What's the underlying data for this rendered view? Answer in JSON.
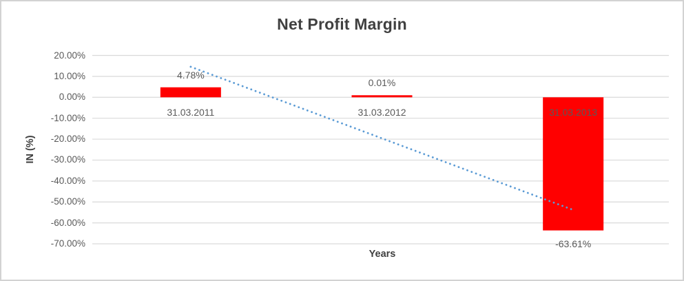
{
  "chart": {
    "title": "Net Profit Margin",
    "x_axis_label": "Years",
    "y_axis_label": "IN (%)"
  },
  "chart_data": {
    "type": "bar",
    "title": "Net Profit Margin",
    "xlabel": "Years",
    "ylabel": "IN (%)",
    "categories": [
      "31.03.2011",
      "31.03.2012",
      "31.03.2013"
    ],
    "values": [
      4.78,
      0.01,
      -63.61
    ],
    "data_labels": [
      "4.78%",
      "0.01%",
      "-63.61%"
    ],
    "y_ticks": [
      {
        "value": 20,
        "label": "20.00%"
      },
      {
        "value": 10,
        "label": "10.00%"
      },
      {
        "value": 0,
        "label": "0.00%"
      },
      {
        "value": -10,
        "label": "-10.00%"
      },
      {
        "value": -20,
        "label": "-20.00%"
      },
      {
        "value": -30,
        "label": "-30.00%"
      },
      {
        "value": -40,
        "label": "-40.00%"
      },
      {
        "value": -50,
        "label": "-50.00%"
      },
      {
        "value": -60,
        "label": "-60.00%"
      },
      {
        "value": -70,
        "label": "-70.00%"
      }
    ],
    "ylim": [
      -70,
      20
    ],
    "grid": true,
    "legend": false,
    "trendline": {
      "type": "linear",
      "style": "dotted",
      "fitted_endpoints_pct": [
        14.59,
        -53.8
      ]
    },
    "colors": {
      "bar": "#ff0000",
      "trendline": "#5b9bd5",
      "gridline": "#d9d9d9",
      "title_text": "#404040",
      "label_text": "#595959"
    }
  }
}
